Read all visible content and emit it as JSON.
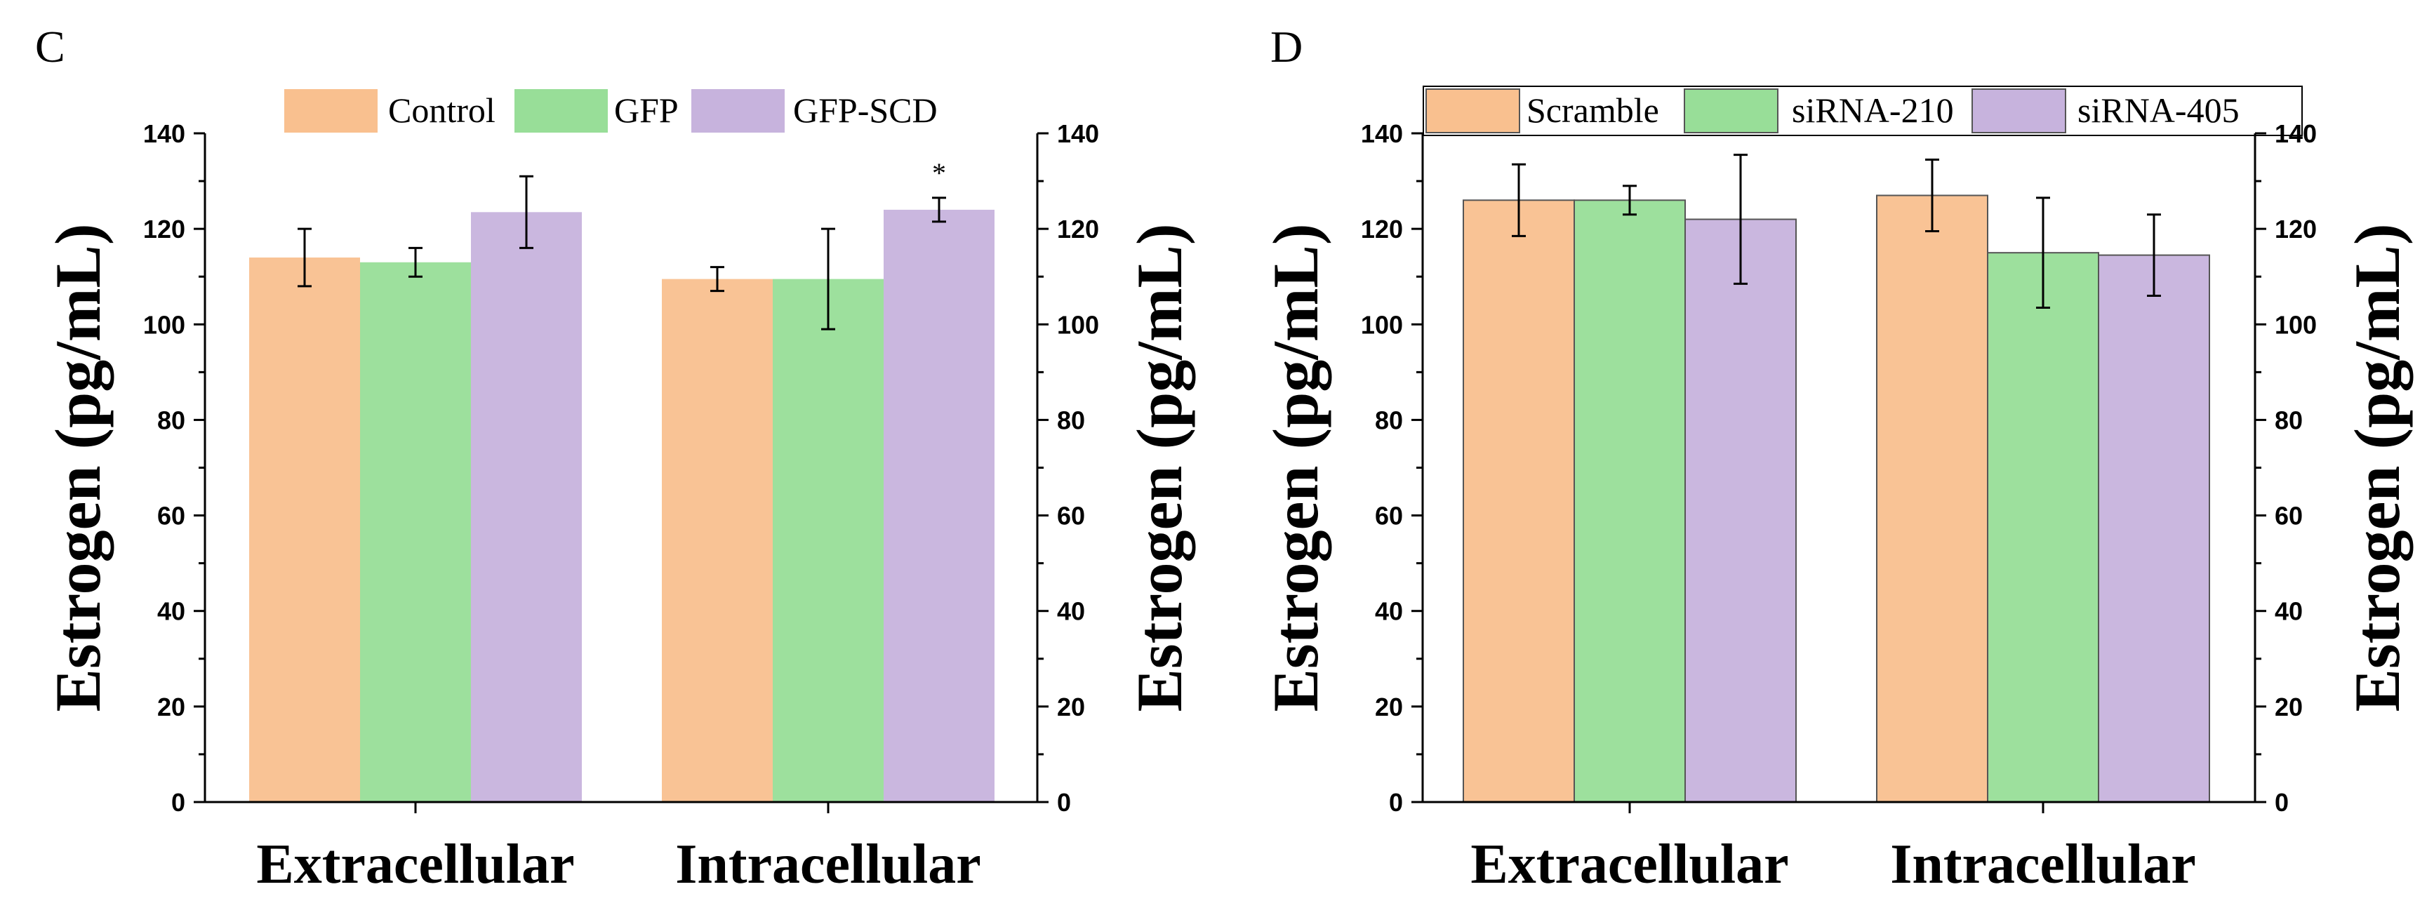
{
  "chart_data": [
    {
      "type": "bar",
      "panel_label": "C",
      "categories": [
        "Extracellular",
        "Intracellular"
      ],
      "series": [
        {
          "name": "Control",
          "color": "#F9C08F",
          "values": [
            114,
            109.5
          ],
          "errors": [
            6,
            2.5
          ]
        },
        {
          "name": "GFP",
          "color": "#98DE98",
          "values": [
            113,
            109.5
          ],
          "errors": [
            3,
            10.5
          ]
        },
        {
          "name": "GFP-SCD",
          "color": "#C7B3DD",
          "values": [
            123.5,
            124
          ],
          "errors": [
            7.5,
            2.5
          ]
        }
      ],
      "annotations": [
        {
          "category": "Intracellular",
          "series": "GFP-SCD",
          "text": "*"
        }
      ],
      "ylabel": "Estrogen (pg/mL)",
      "ylabel_right": "Estrogen (pg/mL)",
      "ylim": [
        0,
        140
      ],
      "yticks": [
        0,
        20,
        40,
        60,
        80,
        100,
        120,
        140
      ],
      "legend_position": "top",
      "bar_outline": false
    },
    {
      "type": "bar",
      "panel_label": "D",
      "categories": [
        "Extracellular",
        "Intracellular"
      ],
      "series": [
        {
          "name": "Scramble",
          "color": "#F9C08F",
          "values": [
            126,
            127
          ],
          "errors": [
            7.5,
            7.5
          ]
        },
        {
          "name": "siRNA-210",
          "color": "#98DE98",
          "values": [
            126,
            115
          ],
          "errors": [
            3,
            11.5
          ]
        },
        {
          "name": "siRNA-405",
          "color": "#C7B3DD",
          "values": [
            122,
            114.5
          ],
          "errors": [
            13.5,
            8.5
          ]
        }
      ],
      "annotations": [],
      "ylabel": "Estrogen (pg/mL)",
      "ylabel_right": "Estrogen (pg/mL)",
      "ylim": [
        0,
        140
      ],
      "yticks": [
        0,
        20,
        40,
        60,
        80,
        100,
        120,
        140
      ],
      "legend_position": "top",
      "bar_outline": true
    }
  ]
}
